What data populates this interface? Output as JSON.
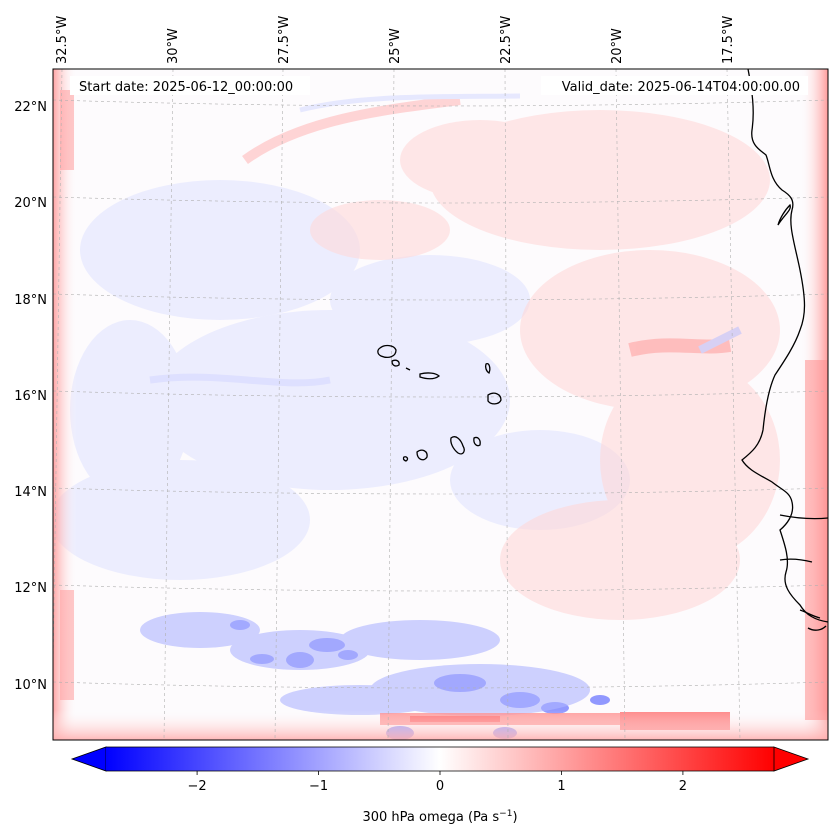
{
  "map": {
    "start_date": "Start date: 2025-06-12_00:00:00",
    "valid_date": "Valid_date: 2025-06-14T04:00:00.00",
    "lon_labels": [
      "32.5°W",
      "30°W",
      "27.5°W",
      "25°W",
      "22.5°W",
      "20°W",
      "17.5°W"
    ],
    "lat_labels": [
      "22°N",
      "20°N",
      "18°N",
      "16°N",
      "14°N",
      "12°N",
      "10°N"
    ],
    "field": "300 hPa omega",
    "colors": {
      "negative": "#0000ff",
      "neutral": "#ffffff",
      "positive": "#ff0000",
      "coast": "#000000",
      "grid": "#b0b0b0"
    }
  },
  "colorbar": {
    "label": "300 hPa omega (Pa s",
    "label_unit_exp": "−1",
    "label_close": ")",
    "range": [
      -2.75,
      2.75
    ],
    "ticks": [
      {
        "value": -2,
        "text": "−2"
      },
      {
        "value": -1,
        "text": "−1"
      },
      {
        "value": 0,
        "text": "0"
      },
      {
        "value": 1,
        "text": "1"
      },
      {
        "value": 2,
        "text": "2"
      }
    ],
    "extend": "both"
  }
}
